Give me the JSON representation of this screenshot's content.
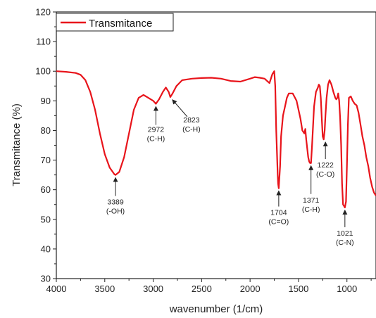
{
  "chart_data": {
    "type": "line",
    "title": "",
    "xlabel": "wavenumber (1/cm)",
    "ylabel": "Transmitance (%)",
    "xlim": [
      4000,
      700
    ],
    "ylim": [
      30,
      120
    ],
    "x_reversed": true,
    "x_ticks": [
      4000,
      3500,
      3000,
      2500,
      2000,
      1500,
      1000
    ],
    "y_ticks": [
      30,
      40,
      50,
      60,
      70,
      80,
      90,
      100,
      110,
      120
    ],
    "x_tick_labels": [
      "4000",
      "3500",
      "3000",
      "2500",
      "2000",
      "1500",
      "1000"
    ],
    "y_tick_labels": [
      "30",
      "40",
      "50",
      "60",
      "70",
      "80",
      "90",
      "100",
      "110",
      "120"
    ],
    "grid": false,
    "legend_position": "top-left",
    "series": [
      {
        "name": "Transmitance",
        "color": "#e8141b",
        "x": [
          4000,
          3900,
          3800,
          3750,
          3700,
          3650,
          3600,
          3550,
          3500,
          3450,
          3400,
          3389,
          3350,
          3300,
          3250,
          3200,
          3150,
          3100,
          3050,
          3000,
          2972,
          2940,
          2900,
          2870,
          2840,
          2823,
          2800,
          2760,
          2700,
          2600,
          2500,
          2400,
          2300,
          2200,
          2100,
          2000,
          1950,
          1900,
          1850,
          1800,
          1770,
          1750,
          1740,
          1730,
          1720,
          1715,
          1710,
          1704,
          1690,
          1680,
          1660,
          1640,
          1620,
          1600,
          1560,
          1520,
          1480,
          1460,
          1440,
          1430,
          1420,
          1410,
          1400,
          1390,
          1380,
          1371,
          1360,
          1340,
          1320,
          1300,
          1290,
          1280,
          1270,
          1260,
          1250,
          1240,
          1230,
          1222,
          1210,
          1195,
          1180,
          1160,
          1140,
          1120,
          1110,
          1100,
          1090,
          1080,
          1070,
          1060,
          1050,
          1040,
          1030,
          1021,
          1010,
          1000,
          990,
          980,
          960,
          940,
          920,
          900,
          880,
          860,
          840,
          820,
          800,
          780,
          760,
          740,
          720,
          700
        ],
        "y": [
          100,
          99.8,
          99.4,
          98.8,
          97,
          93,
          87,
          79,
          72,
          67.5,
          65.2,
          65,
          66,
          71,
          79,
          87,
          91,
          92,
          91,
          90,
          89,
          90.5,
          93,
          94.5,
          93,
          91.3,
          92.5,
          95,
          97,
          97.5,
          97.7,
          97.8,
          97.5,
          96.7,
          96.5,
          97.5,
          98,
          97.8,
          97.5,
          96,
          99,
          100,
          95,
          80,
          70,
          65,
          62,
          60.5,
          68,
          78,
          85,
          88,
          91,
          92.5,
          92.5,
          90,
          84,
          80,
          79,
          80.5,
          77,
          74,
          71,
          69.5,
          69,
          69,
          75,
          88,
          93,
          94.5,
          95.5,
          95,
          91,
          84,
          78,
          77,
          80,
          85,
          91,
          95.5,
          97,
          95.5,
          93,
          91,
          90.5,
          91,
          92.5,
          90,
          84,
          75,
          62,
          55,
          54.5,
          54,
          56,
          68,
          82,
          91,
          91.5,
          90,
          89,
          88.5,
          86,
          82,
          78,
          75,
          71,
          68,
          64,
          61,
          59,
          58
        ]
      }
    ],
    "annotations": [
      {
        "line1": "3389",
        "line2": "(-OH)",
        "x": 3389,
        "y": 65
      },
      {
        "line1": "2972",
        "line2": "(C-H)",
        "x": 2972,
        "y": 89
      },
      {
        "line1": "2823",
        "line2": "(C-H)",
        "x": 2823,
        "y": 91.3
      },
      {
        "line1": "1704",
        "line2": "(C=O)",
        "x": 1704,
        "y": 60.5
      },
      {
        "line1": "1371",
        "line2": "(C-H)",
        "x": 1371,
        "y": 69
      },
      {
        "line1": "1222",
        "line2": "(C-O)",
        "x": 1222,
        "y": 77
      },
      {
        "line1": "1021",
        "line2": "(C-N)",
        "x": 1021,
        "y": 54
      }
    ]
  }
}
